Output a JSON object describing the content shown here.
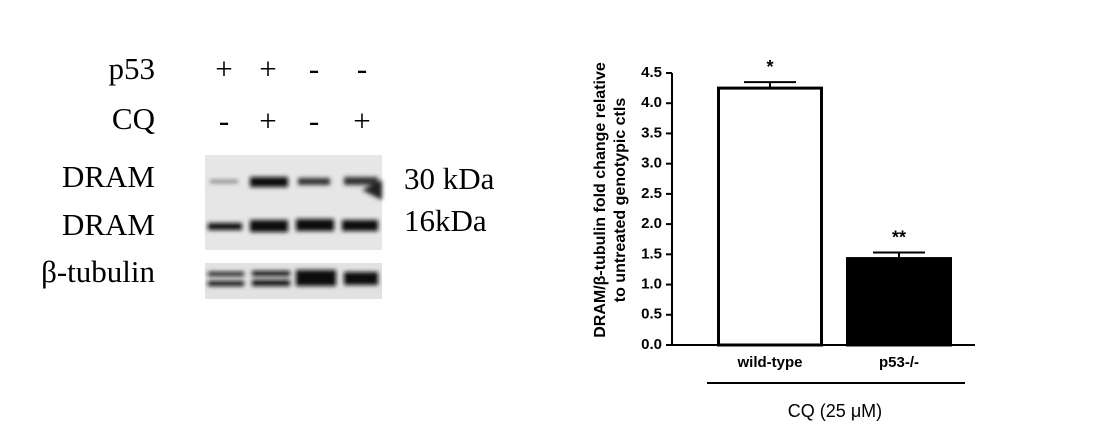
{
  "blot": {
    "treatments": [
      {
        "label": "p53",
        "signs": [
          "+",
          "+",
          "-",
          "-"
        ]
      },
      {
        "label": "CQ",
        "signs": [
          "-",
          "+",
          "-",
          "+"
        ]
      }
    ],
    "bands": [
      {
        "label": "DRAM",
        "size": "30 kDa"
      },
      {
        "label": "DRAM",
        "size": "16kDa"
      },
      {
        "label": "β-tubulin"
      }
    ]
  },
  "chart_data": {
    "type": "bar",
    "y_label": [
      "DRAM/β-tubulin fold change relative",
      "to untreated genotypic ctls"
    ],
    "x_label": "CQ (25 μM)",
    "categories": [
      "wild-type",
      "p53-/-"
    ],
    "values": [
      4.25,
      1.43
    ],
    "errors": [
      0.1,
      0.1
    ],
    "annotations": [
      "*",
      "**"
    ],
    "colors": [
      "#ffffff",
      "#000000"
    ],
    "ylim": [
      0,
      4.5
    ],
    "yticks": [
      {
        "value": 0,
        "label": "0.0"
      },
      0.5,
      {
        "value": 1,
        "label": "1.0"
      },
      1.5,
      {
        "value": 2,
        "label": "2.0"
      },
      2.5,
      {
        "value": 3,
        "label": "3.0"
      },
      3.5,
      {
        "value": 4,
        "label": "4.0"
      },
      4.5
    ]
  }
}
